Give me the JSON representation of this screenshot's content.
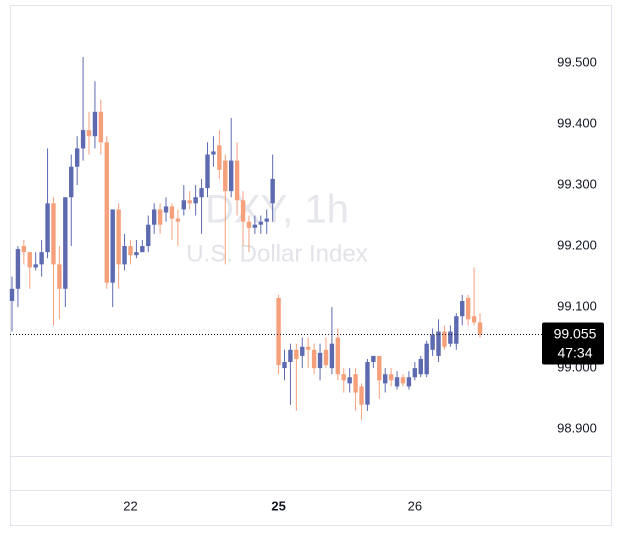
{
  "chart_data": {
    "type": "candlestick",
    "title": "DXY, 1h",
    "subtitle": "U.S. Dollar Index",
    "categories": [
      null,
      null,
      null,
      null,
      null,
      null,
      null,
      null,
      null,
      null,
      null,
      null,
      null,
      null,
      null,
      null,
      null,
      null,
      null,
      null,
      "22",
      null,
      null,
      null,
      null,
      null,
      null,
      null,
      null,
      null,
      null,
      null,
      null,
      null,
      null,
      null,
      null,
      null,
      null,
      null,
      null,
      null,
      null,
      null,
      null,
      "25",
      null,
      null,
      null,
      null,
      null,
      null,
      null,
      null,
      null,
      null,
      null,
      null,
      null,
      null,
      null,
      null,
      null,
      null,
      null,
      null,
      null,
      null,
      "26",
      null,
      null,
      null,
      null,
      null,
      null,
      null,
      null,
      null,
      null,
      null
    ],
    "open": [
      99.11,
      99.13,
      99.2,
      99.19,
      99.165,
      99.17,
      99.19,
      99.27,
      99.17,
      99.13,
      99.28,
      99.33,
      99.36,
      99.39,
      99.38,
      99.42,
      99.37,
      99.14,
      99.26,
      99.17,
      99.2,
      99.185,
      99.19,
      99.2,
      99.235,
      99.26,
      99.255,
      99.265,
      99.245,
      99.26,
      99.275,
      99.27,
      99.28,
      99.295,
      99.35,
      99.365,
      99.34,
      99.29,
      99.34,
      99.275,
      99.24,
      99.23,
      99.235,
      99.24,
      99.27,
      99.115,
      99.0,
      99.01,
      99.03,
      99.02,
      99.035,
      99.03,
      99.0,
      99.03,
      99.0,
      99.05,
      98.99,
      98.975,
      98.99,
      98.97,
      98.94,
      99.01,
      99.02,
      98.975,
      98.99,
      98.97,
      98.985,
      98.97,
      98.985,
      98.99,
      98.99,
      99.03,
      99.02,
      99.06,
      99.04,
      99.04,
      99.085,
      99.115,
      99.085,
      99.075
    ],
    "high": [
      99.15,
      99.2,
      99.21,
      99.19,
      99.19,
      99.21,
      99.36,
      99.28,
      99.2,
      99.28,
      99.35,
      99.38,
      99.51,
      99.42,
      99.47,
      99.44,
      99.38,
      99.26,
      99.27,
      99.22,
      99.21,
      99.21,
      99.21,
      99.25,
      99.27,
      99.27,
      99.28,
      99.27,
      99.26,
      99.3,
      99.29,
      99.3,
      99.31,
      99.37,
      99.38,
      99.39,
      99.35,
      99.41,
      99.37,
      99.29,
      99.25,
      99.25,
      99.25,
      99.26,
      99.35,
      99.12,
      99.03,
      99.04,
      99.04,
      99.05,
      99.05,
      99.04,
      99.04,
      99.05,
      99.1,
      99.065,
      99.0,
      99.0,
      99.0,
      98.975,
      99.015,
      99.02,
      99.02,
      99.0,
      99.0,
      98.995,
      98.99,
      98.995,
      99.01,
      99.02,
      99.045,
      99.065,
      99.08,
      99.07,
      99.07,
      99.09,
      99.12,
      99.12,
      99.165,
      99.09
    ],
    "low": [
      99.06,
      99.1,
      99.17,
      99.13,
      99.16,
      99.15,
      99.18,
      99.07,
      99.08,
      99.1,
      99.2,
      99.3,
      99.34,
      99.35,
      99.36,
      99.35,
      99.13,
      99.1,
      99.13,
      99.16,
      99.17,
      99.18,
      99.19,
      99.19,
      99.22,
      99.22,
      99.24,
      99.21,
      99.2,
      99.25,
      99.26,
      99.25,
      99.22,
      99.28,
      99.33,
      99.31,
      99.17,
      99.28,
      99.25,
      99.2,
      99.19,
      99.22,
      99.22,
      99.22,
      99.24,
      98.99,
      98.98,
      98.94,
      98.93,
      99.0,
      99.0,
      98.99,
      98.98,
      99.0,
      98.99,
      98.98,
      98.96,
      98.96,
      98.93,
      98.915,
      98.93,
      99.0,
      98.95,
      98.96,
      98.97,
      98.965,
      98.97,
      98.965,
      98.98,
      98.985,
      98.985,
      99.02,
      99.01,
      99.03,
      99.035,
      99.03,
      99.07,
      99.07,
      99.07,
      99.05
    ],
    "close": [
      99.13,
      99.195,
      99.19,
      99.165,
      99.17,
      99.19,
      99.27,
      99.17,
      99.13,
      99.28,
      99.33,
      99.36,
      99.39,
      99.38,
      99.42,
      99.37,
      99.14,
      99.26,
      99.17,
      99.2,
      99.185,
      99.19,
      99.2,
      99.235,
      99.26,
      99.235,
      99.265,
      99.245,
      99.24,
      99.275,
      99.27,
      99.28,
      99.295,
      99.35,
      99.355,
      99.325,
      99.29,
      99.34,
      99.275,
      99.24,
      99.23,
      99.235,
      99.24,
      99.245,
      99.31,
      99.005,
      99.01,
      99.03,
      99.015,
      99.035,
      99.03,
      99.0,
      99.025,
      99.005,
      99.04,
      98.99,
      98.98,
      98.985,
      98.96,
      98.94,
      99.01,
      99.02,
      98.98,
      98.99,
      98.98,
      98.985,
      98.975,
      98.985,
      99.0,
      99.015,
      99.04,
      99.055,
      99.06,
      99.035,
      99.06,
      99.085,
      99.11,
      99.08,
      99.075,
      99.055
    ],
    "up_color": "#5d6ab0",
    "down_color": "#f5a07b",
    "ylim": [
      98.856,
      99.595
    ],
    "yticks": [
      {
        "value": 99.5,
        "label": "99.500"
      },
      {
        "value": 99.4,
        "label": "99.400"
      },
      {
        "value": 99.3,
        "label": "99.300"
      },
      {
        "value": 99.2,
        "label": "99.200"
      },
      {
        "value": 99.1,
        "label": "99.100"
      },
      {
        "value": 99.0,
        "label": "99.000"
      },
      {
        "value": 98.9,
        "label": "98.900"
      }
    ],
    "last_price": 99.055,
    "countdown": "47:34"
  }
}
